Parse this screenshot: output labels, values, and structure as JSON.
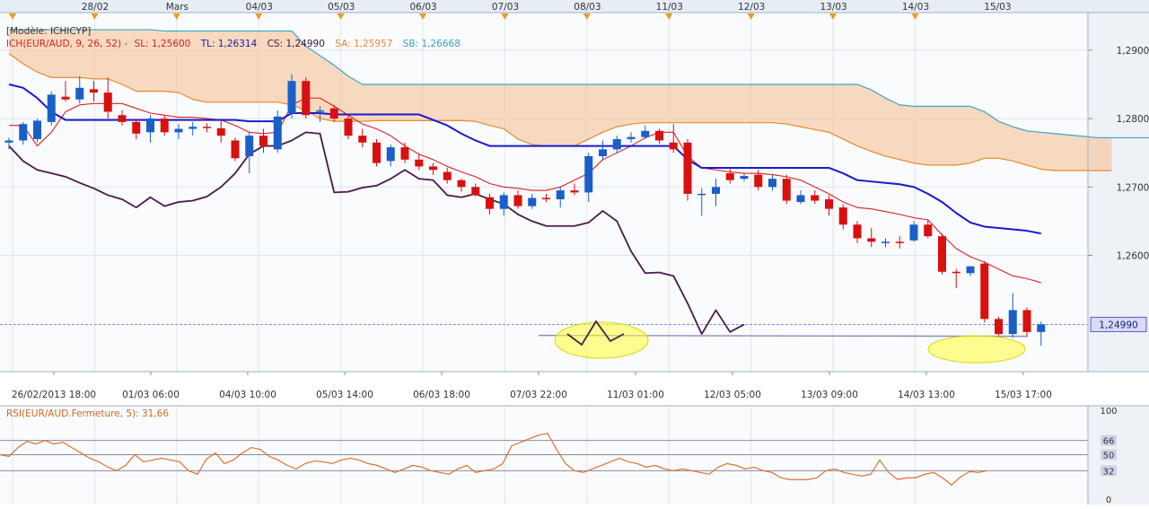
{
  "chart_data": [
    {
      "type": "candlestick",
      "instrument": "EUR/AUD",
      "model_label": "[Modèle: ICHICYP]",
      "legend": {
        "ich": "ICH(EUR/AUD, 9, 26, 52) -",
        "sl": "SL: 1,25600",
        "tl": "TL: 1,26314",
        "cs": "CS: 1,24990",
        "sa": "SA: 1,25957",
        "sb": "SB: 1,26668"
      },
      "y_axis_ticks": [
        "1,2900",
        "1,2800",
        "1,2700",
        "1,2600"
      ],
      "last_price_label": "1,24990",
      "ylim": [
        1.243,
        1.2955
      ],
      "grid": true,
      "top_date_labels": [
        "28/02",
        "Mars",
        "04/03",
        "05/03",
        "06/03",
        "07/03",
        "08/03",
        "11/03",
        "12/03",
        "13/03",
        "14/03",
        "15/03"
      ],
      "bottom_time_labels": [
        "26/02/2013 18:00",
        "01/03 06:00",
        "04/03 10:00",
        "05/03 14:00",
        "06/03 18:00",
        "07/03 22:00",
        "11/03 01:00",
        "12/03 05:00",
        "13/03 09:00",
        "14/03 13:00",
        "15/03 17:00"
      ],
      "candles": [
        {
          "o": 1.2765,
          "h": 1.2772,
          "l": 1.2755,
          "c": 1.2768
        },
        {
          "o": 1.2768,
          "h": 1.2795,
          "l": 1.2762,
          "c": 1.2792
        },
        {
          "o": 1.277,
          "h": 1.28,
          "l": 1.2765,
          "c": 1.2797
        },
        {
          "o": 1.2795,
          "h": 1.284,
          "l": 1.279,
          "c": 1.2835
        },
        {
          "o": 1.2832,
          "h": 1.2855,
          "l": 1.2825,
          "c": 1.2828
        },
        {
          "o": 1.2828,
          "h": 1.2862,
          "l": 1.2822,
          "c": 1.2845
        },
        {
          "o": 1.2843,
          "h": 1.2855,
          "l": 1.2825,
          "c": 1.2838
        },
        {
          "o": 1.2838,
          "h": 1.286,
          "l": 1.28,
          "c": 1.281
        },
        {
          "o": 1.2805,
          "h": 1.2812,
          "l": 1.279,
          "c": 1.2795
        },
        {
          "o": 1.2795,
          "h": 1.28,
          "l": 1.277,
          "c": 1.2778
        },
        {
          "o": 1.278,
          "h": 1.2805,
          "l": 1.2765,
          "c": 1.28
        },
        {
          "o": 1.28,
          "h": 1.2805,
          "l": 1.2775,
          "c": 1.278
        },
        {
          "o": 1.278,
          "h": 1.2792,
          "l": 1.277,
          "c": 1.2785
        },
        {
          "o": 1.2785,
          "h": 1.2795,
          "l": 1.2775,
          "c": 1.2788
        },
        {
          "o": 1.2788,
          "h": 1.2793,
          "l": 1.278,
          "c": 1.2786
        },
        {
          "o": 1.2786,
          "h": 1.28,
          "l": 1.2765,
          "c": 1.2775
        },
        {
          "o": 1.2768,
          "h": 1.2772,
          "l": 1.2738,
          "c": 1.2742
        },
        {
          "o": 1.2745,
          "h": 1.278,
          "l": 1.272,
          "c": 1.2775
        },
        {
          "o": 1.2775,
          "h": 1.2785,
          "l": 1.275,
          "c": 1.276
        },
        {
          "o": 1.2755,
          "h": 1.2812,
          "l": 1.275,
          "c": 1.2803
        },
        {
          "o": 1.2808,
          "h": 1.2865,
          "l": 1.28,
          "c": 1.2855
        },
        {
          "o": 1.2855,
          "h": 1.286,
          "l": 1.28,
          "c": 1.2805
        },
        {
          "o": 1.281,
          "h": 1.2818,
          "l": 1.2795,
          "c": 1.2812
        },
        {
          "o": 1.2815,
          "h": 1.282,
          "l": 1.2795,
          "c": 1.28
        },
        {
          "o": 1.28,
          "h": 1.2806,
          "l": 1.277,
          "c": 1.2775
        },
        {
          "o": 1.2775,
          "h": 1.2785,
          "l": 1.2758,
          "c": 1.2765
        },
        {
          "o": 1.2765,
          "h": 1.277,
          "l": 1.273,
          "c": 1.2735
        },
        {
          "o": 1.2738,
          "h": 1.2762,
          "l": 1.273,
          "c": 1.2758
        },
        {
          "o": 1.2758,
          "h": 1.2765,
          "l": 1.2735,
          "c": 1.274
        },
        {
          "o": 1.274,
          "h": 1.2748,
          "l": 1.2725,
          "c": 1.273
        },
        {
          "o": 1.273,
          "h": 1.2735,
          "l": 1.2718,
          "c": 1.2725
        },
        {
          "o": 1.2722,
          "h": 1.2728,
          "l": 1.2705,
          "c": 1.271
        },
        {
          "o": 1.271,
          "h": 1.2712,
          "l": 1.2693,
          "c": 1.27
        },
        {
          "o": 1.27,
          "h": 1.2705,
          "l": 1.2686,
          "c": 1.2688
        },
        {
          "o": 1.2685,
          "h": 1.269,
          "l": 1.266,
          "c": 1.2668
        },
        {
          "o": 1.2668,
          "h": 1.2692,
          "l": 1.2658,
          "c": 1.2688
        },
        {
          "o": 1.2688,
          "h": 1.2695,
          "l": 1.2668,
          "c": 1.2672
        },
        {
          "o": 1.2672,
          "h": 1.269,
          "l": 1.2668,
          "c": 1.2684
        },
        {
          "o": 1.2684,
          "h": 1.269,
          "l": 1.2678,
          "c": 1.2682
        },
        {
          "o": 1.2682,
          "h": 1.27,
          "l": 1.267,
          "c": 1.2695
        },
        {
          "o": 1.2695,
          "h": 1.2705,
          "l": 1.2688,
          "c": 1.2692
        },
        {
          "o": 1.2692,
          "h": 1.275,
          "l": 1.2678,
          "c": 1.2745
        },
        {
          "o": 1.2745,
          "h": 1.2768,
          "l": 1.274,
          "c": 1.2755
        },
        {
          "o": 1.2755,
          "h": 1.2775,
          "l": 1.275,
          "c": 1.277
        },
        {
          "o": 1.277,
          "h": 1.278,
          "l": 1.2765,
          "c": 1.2773
        },
        {
          "o": 1.2773,
          "h": 1.279,
          "l": 1.277,
          "c": 1.2782
        },
        {
          "o": 1.2782,
          "h": 1.2785,
          "l": 1.2763,
          "c": 1.2768
        },
        {
          "o": 1.2765,
          "h": 1.2792,
          "l": 1.275,
          "c": 1.2755
        },
        {
          "o": 1.2765,
          "h": 1.277,
          "l": 1.268,
          "c": 1.269
        },
        {
          "o": 1.269,
          "h": 1.2698,
          "l": 1.2658,
          "c": 1.269
        },
        {
          "o": 1.269,
          "h": 1.2712,
          "l": 1.2672,
          "c": 1.27
        },
        {
          "o": 1.272,
          "h": 1.2728,
          "l": 1.2705,
          "c": 1.271
        },
        {
          "o": 1.2712,
          "h": 1.272,
          "l": 1.2708,
          "c": 1.2716
        },
        {
          "o": 1.2718,
          "h": 1.2725,
          "l": 1.2695,
          "c": 1.27
        },
        {
          "o": 1.27,
          "h": 1.2718,
          "l": 1.2695,
          "c": 1.2712
        },
        {
          "o": 1.2712,
          "h": 1.2718,
          "l": 1.2675,
          "c": 1.268
        },
        {
          "o": 1.2678,
          "h": 1.2695,
          "l": 1.2675,
          "c": 1.2688
        },
        {
          "o": 1.2688,
          "h": 1.2695,
          "l": 1.2675,
          "c": 1.268
        },
        {
          "o": 1.2682,
          "h": 1.2688,
          "l": 1.2658,
          "c": 1.2668
        },
        {
          "o": 1.267,
          "h": 1.2675,
          "l": 1.2638,
          "c": 1.2645
        },
        {
          "o": 1.2645,
          "h": 1.265,
          "l": 1.2618,
          "c": 1.2625
        },
        {
          "o": 1.2625,
          "h": 1.264,
          "l": 1.2612,
          "c": 1.262
        },
        {
          "o": 1.2618,
          "h": 1.2625,
          "l": 1.2612,
          "c": 1.262
        },
        {
          "o": 1.262,
          "h": 1.2628,
          "l": 1.261,
          "c": 1.2618
        },
        {
          "o": 1.2622,
          "h": 1.265,
          "l": 1.262,
          "c": 1.2645
        },
        {
          "o": 1.2645,
          "h": 1.2652,
          "l": 1.2625,
          "c": 1.2628
        },
        {
          "o": 1.2628,
          "h": 1.2632,
          "l": 1.2572,
          "c": 1.2576
        },
        {
          "o": 1.2576,
          "h": 1.258,
          "l": 1.2552,
          "c": 1.2574
        },
        {
          "o": 1.2574,
          "h": 1.2584,
          "l": 1.257,
          "c": 1.2584
        },
        {
          "o": 1.2588,
          "h": 1.2592,
          "l": 1.2502,
          "c": 1.2507
        },
        {
          "o": 1.2507,
          "h": 1.251,
          "l": 1.2483,
          "c": 1.2485
        },
        {
          "o": 1.2485,
          "h": 1.2545,
          "l": 1.248,
          "c": 1.252
        },
        {
          "o": 1.252,
          "h": 1.2524,
          "l": 1.2482,
          "c": 1.2488
        },
        {
          "o": 1.2488,
          "h": 1.2503,
          "l": 1.2468,
          "c": 1.2499
        }
      ],
      "kijun_tl": [
        1.285,
        1.2845,
        1.283,
        1.281,
        1.2798,
        1.2798,
        1.2798,
        1.2798,
        1.2798,
        1.2798,
        1.2798,
        1.2798,
        1.2798,
        1.2798,
        1.2798,
        1.2798,
        1.2798,
        1.2796,
        1.2796,
        1.2796,
        1.2808,
        1.2808,
        1.2808,
        1.2806,
        1.2806,
        1.2806,
        1.2806,
        1.2806,
        1.2806,
        1.2806,
        1.2798,
        1.279,
        1.2778,
        1.2768,
        1.276,
        1.276,
        1.276,
        1.276,
        1.276,
        1.276,
        1.276,
        1.276,
        1.276,
        1.276,
        1.276,
        1.276,
        1.276,
        1.276,
        1.274,
        1.2728,
        1.2728,
        1.2728,
        1.2728,
        1.2728,
        1.2728,
        1.2728,
        1.2728,
        1.2728,
        1.2728,
        1.272,
        1.271,
        1.2708,
        1.2706,
        1.2704,
        1.27,
        1.269,
        1.2678,
        1.2662,
        1.2648,
        1.2642,
        1.264,
        1.2638,
        1.2636,
        1.2632
      ],
      "tenkan_sl": [
        1.279,
        1.279,
        1.276,
        1.278,
        1.281,
        1.282,
        1.2822,
        1.2822,
        1.2822,
        1.2815,
        1.2808,
        1.2805,
        1.2802,
        1.2802,
        1.28,
        1.2798,
        1.279,
        1.278,
        1.2778,
        1.278,
        1.282,
        1.283,
        1.283,
        1.2818,
        1.2805,
        1.2792,
        1.2785,
        1.2775,
        1.276,
        1.2748,
        1.274,
        1.273,
        1.2722,
        1.2715,
        1.2705,
        1.27,
        1.2698,
        1.2695,
        1.2695,
        1.27,
        1.271,
        1.272,
        1.274,
        1.275,
        1.276,
        1.2772,
        1.278,
        1.278,
        1.2745,
        1.2728,
        1.2725,
        1.2722,
        1.272,
        1.272,
        1.2718,
        1.2715,
        1.271,
        1.27,
        1.269,
        1.2678,
        1.267,
        1.2668,
        1.2664,
        1.266,
        1.2655,
        1.2652,
        1.263,
        1.261,
        1.2598,
        1.259,
        1.258,
        1.257,
        1.2566,
        1.256
      ],
      "chikou_cs": [
        1.276,
        1.2738,
        1.2725,
        1.272,
        1.2715,
        1.2706,
        1.2698,
        1.2688,
        1.2682,
        1.267,
        1.2685,
        1.2672,
        1.2678,
        1.268,
        1.2686,
        1.27,
        1.272,
        1.2748,
        1.276,
        1.276,
        1.2768,
        1.278,
        1.2778,
        1.2692,
        1.2693,
        1.2699,
        1.2702,
        1.2712,
        1.2725,
        1.2712,
        1.271,
        1.2688,
        1.2685,
        1.269,
        1.2682,
        1.2675,
        1.266,
        1.265,
        1.2643,
        1.2643,
        1.2643,
        1.2648,
        1.2665,
        1.265,
        1.2606,
        1.2574,
        1.2575,
        1.257,
        1.253,
        1.2485,
        1.252,
        1.2488,
        1.2499
      ],
      "span_a_sa": [
        1.2895,
        1.288,
        1.2868,
        1.286,
        1.286,
        1.286,
        1.2858,
        1.2858,
        1.285,
        1.284,
        1.284,
        1.284,
        1.2838,
        1.2828,
        1.2824,
        1.2824,
        1.2824,
        1.2824,
        1.2824,
        1.2824,
        1.282,
        1.2812,
        1.28,
        1.2796,
        1.2796,
        1.2796,
        1.2797,
        1.2797,
        1.2797,
        1.2797,
        1.2797,
        1.2797,
        1.2797,
        1.2796,
        1.279,
        1.2785,
        1.277,
        1.2762,
        1.276,
        1.276,
        1.276,
        1.277,
        1.278,
        1.2788,
        1.2792,
        1.2794,
        1.2794,
        1.2794,
        1.2794,
        1.2794,
        1.2794,
        1.2794,
        1.2794,
        1.2794,
        1.2794,
        1.2792,
        1.2788,
        1.2784,
        1.278,
        1.277,
        1.276,
        1.2752,
        1.2745,
        1.274,
        1.2735,
        1.2732,
        1.2732,
        1.2732,
        1.2735,
        1.2742,
        1.2742,
        1.2738,
        1.2732,
        1.2726,
        1.2724,
        1.2724,
        1.2724,
        1.2724,
        1.2724
      ],
      "span_b_sb": [
        1.293,
        1.293,
        1.293,
        1.293,
        1.293,
        1.293,
        1.293,
        1.293,
        1.293,
        1.293,
        1.293,
        1.2928,
        1.2928,
        1.2928,
        1.2928,
        1.2928,
        1.2928,
        1.2928,
        1.2928,
        1.2928,
        1.2928,
        1.2906,
        1.2892,
        1.2878,
        1.2862,
        1.285,
        1.285,
        1.285,
        1.285,
        1.285,
        1.285,
        1.285,
        1.285,
        1.285,
        1.285,
        1.285,
        1.285,
        1.285,
        1.285,
        1.285,
        1.285,
        1.285,
        1.285,
        1.285,
        1.285,
        1.285,
        1.285,
        1.285,
        1.285,
        1.285,
        1.285,
        1.285,
        1.285,
        1.285,
        1.285,
        1.285,
        1.285,
        1.285,
        1.285,
        1.285,
        1.285,
        1.2842,
        1.283,
        1.282,
        1.2818,
        1.2818,
        1.2818,
        1.2818,
        1.2818,
        1.281,
        1.2796,
        1.2788,
        1.2782,
        1.278,
        1.2778,
        1.2776,
        1.2774,
        1.2772,
        1.2772,
        1.2772,
        1.2772,
        1.2772,
        1.2772,
        1.2772,
        1.2772,
        1.2772,
        1.2772,
        1.2772,
        1.2772,
        1.2772,
        1.2772,
        1.2772
      ],
      "support_level": 1.2483
    },
    {
      "type": "line",
      "legend": "RSI(EUR/AUD.Fermeture, 5): 31,66",
      "y_axis_ticks": [
        "100",
        "66",
        "50",
        "32",
        "0"
      ],
      "ylim": [
        0,
        100
      ],
      "levels": [
        66,
        50,
        32
      ],
      "values": [
        50,
        48,
        58,
        65,
        62,
        66,
        62,
        64,
        58,
        52,
        46,
        42,
        36,
        32,
        38,
        50,
        42,
        44,
        46,
        44,
        42,
        32,
        28,
        45,
        52,
        40,
        44,
        52,
        58,
        56,
        48,
        44,
        38,
        34,
        40,
        43,
        42,
        40,
        44,
        46,
        44,
        40,
        38,
        34,
        30,
        34,
        38,
        36,
        32,
        30,
        28,
        34,
        38,
        30,
        32,
        34,
        40,
        60,
        64,
        68,
        72,
        74,
        56,
        40,
        32,
        30,
        34,
        38,
        42,
        46,
        42,
        40,
        36,
        38,
        34,
        32,
        34,
        32,
        30,
        28,
        36,
        40,
        38,
        34,
        36,
        32,
        30,
        24,
        22,
        22,
        22,
        24,
        32,
        34,
        30,
        28,
        26,
        28,
        44,
        30,
        22,
        24,
        24,
        28,
        30,
        24,
        16,
        25,
        31,
        30,
        32
      ]
    }
  ]
}
